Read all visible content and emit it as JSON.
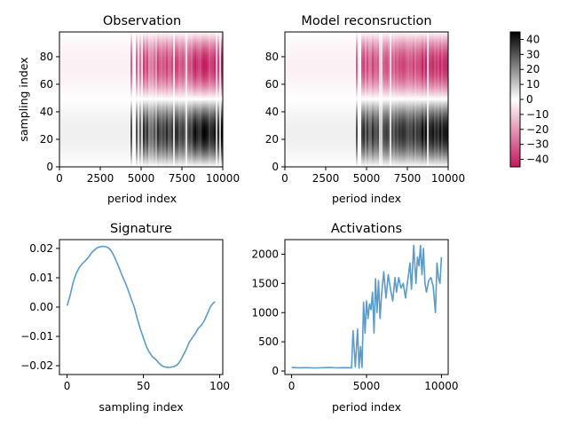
{
  "chart_data": [
    {
      "type": "heatmap",
      "title": "Observation",
      "xlabel": "period index",
      "ylabel": "sampling index",
      "xlim": [
        0,
        10000
      ],
      "ylim": [
        0,
        98
      ],
      "xticks": [
        "0",
        "2500",
        "5000",
        "7500",
        "10000"
      ],
      "yticks": [
        "0",
        "20",
        "40",
        "60",
        "80"
      ],
      "colormap": "gray_to_pink_diverging",
      "value_range": [
        -45,
        45
      ],
      "colors": {
        "low": "#c2185b",
        "mid": "#ffffff",
        "high": "#000000"
      }
    },
    {
      "type": "heatmap",
      "title": "Model reconsruction",
      "xlabel": "period index",
      "ylabel": "",
      "xlim": [
        0,
        10000
      ],
      "ylim": [
        0,
        98
      ],
      "xticks": [
        "0",
        "2500",
        "5000",
        "7500",
        "10000"
      ],
      "yticks": [
        "0",
        "20",
        "40",
        "60",
        "80"
      ],
      "colormap": "gray_to_pink_diverging",
      "value_range": [
        -45,
        45
      ]
    },
    {
      "type": "colorbar",
      "ticks": [
        "40",
        "30",
        "20",
        "10",
        "0",
        "−10",
        "−20",
        "−30",
        "−40"
      ],
      "tick_values": [
        40,
        30,
        20,
        10,
        0,
        -10,
        -20,
        -30,
        -40
      ],
      "range": [
        -45,
        45
      ]
    },
    {
      "type": "line",
      "title": "Signature",
      "xlabel": "sampling index",
      "ylabel": "",
      "xlim": [
        -5,
        102
      ],
      "ylim": [
        -0.023,
        0.023
      ],
      "xticks": [
        "0",
        "50",
        "100"
      ],
      "xtick_values": [
        0,
        50,
        100
      ],
      "yticks": [
        "0.02",
        "0.01",
        "0.00",
        "−0.01",
        "−0.02"
      ],
      "ytick_values": [
        0.02,
        0.01,
        0.0,
        -0.01,
        -0.02
      ],
      "series": [
        {
          "name": "signature",
          "color": "#5a9bc9",
          "x": [
            0,
            2,
            4,
            6,
            8,
            10,
            12,
            14,
            16,
            18,
            20,
            22,
            24,
            26,
            28,
            30,
            32,
            34,
            36,
            38,
            40,
            42,
            44,
            46,
            48,
            50,
            52,
            54,
            56,
            58,
            60,
            62,
            64,
            66,
            68,
            70,
            72,
            74,
            76,
            78,
            80,
            82,
            84,
            86,
            88,
            90,
            92,
            94,
            96,
            97
          ],
          "values": [
            0.0005,
            0.004,
            0.0085,
            0.0115,
            0.0135,
            0.0148,
            0.0158,
            0.017,
            0.0185,
            0.0195,
            0.0203,
            0.0206,
            0.0207,
            0.0205,
            0.0198,
            0.0182,
            0.016,
            0.0135,
            0.0108,
            0.0085,
            0.0058,
            0.0028,
            0.0,
            -0.004,
            -0.0075,
            -0.0105,
            -0.0135,
            -0.0155,
            -0.017,
            -0.0178,
            -0.019,
            -0.02,
            -0.0204,
            -0.0206,
            -0.0205,
            -0.0203,
            -0.0198,
            -0.0185,
            -0.0165,
            -0.0145,
            -0.012,
            -0.0105,
            -0.009,
            -0.0072,
            -0.0062,
            -0.0045,
            -0.0022,
            0.0002,
            0.0015,
            0.0018
          ]
        }
      ]
    },
    {
      "type": "line",
      "title": "Activations",
      "xlabel": "period index",
      "ylabel": "",
      "xlim": [
        -450,
        10450
      ],
      "ylim": [
        -60,
        2250
      ],
      "xticks": [
        "0",
        "5000",
        "10000"
      ],
      "xtick_values": [
        0,
        5000,
        10000
      ],
      "yticks": [
        "2000",
        "1500",
        "1000",
        "500",
        "0"
      ],
      "ytick_values": [
        2000,
        1500,
        1000,
        500,
        0
      ],
      "series": [
        {
          "name": "activations",
          "color": "#5a9bc9",
          "x": [
            0,
            500,
            1000,
            1500,
            2000,
            2500,
            3000,
            3500,
            4000,
            4100,
            4250,
            4400,
            4500,
            4600,
            4700,
            4800,
            4900,
            5000,
            5100,
            5200,
            5300,
            5400,
            5500,
            5600,
            5700,
            5800,
            5900,
            6000,
            6150,
            6300,
            6450,
            6600,
            6750,
            6900,
            7000,
            7150,
            7300,
            7450,
            7600,
            7750,
            7900,
            8000,
            8150,
            8300,
            8400,
            8500,
            8600,
            8700,
            8800,
            8900,
            9000,
            9150,
            9300,
            9450,
            9600,
            9700,
            9800,
            9900,
            10000
          ],
          "values": [
            60,
            55,
            58,
            52,
            56,
            60,
            54,
            57,
            55,
            690,
            70,
            720,
            50,
            420,
            60,
            1180,
            650,
            1200,
            900,
            1150,
            1050,
            1350,
            650,
            1580,
            1000,
            1550,
            900,
            1300,
            1700,
            1250,
            1650,
            1400,
            1200,
            1600,
            1350,
            1600,
            1420,
            1500,
            1250,
            1550,
            1850,
            1400,
            2150,
            1500,
            1950,
            1800,
            2150,
            1650,
            2100,
            1500,
            1350,
            1550,
            1600,
            1450,
            1000,
            1850,
            1600,
            1500,
            1950
          ]
        }
      ]
    }
  ]
}
